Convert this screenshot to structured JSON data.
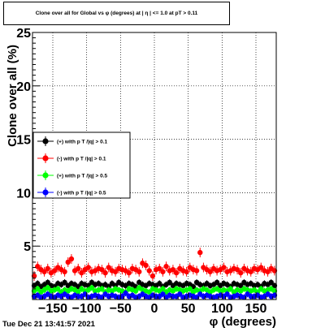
{
  "chart_data": {
    "type": "scatter",
    "title": "Clone  over all for Global vs φ (degrees) at | η | <= 1.0 at pT > 0.11",
    "xlabel": "φ (degrees)",
    "ylabel": "Clone  over all (%)",
    "xlim": [
      -180,
      180
    ],
    "ylim": [
      0,
      25
    ],
    "x_ticks": [
      -150,
      -100,
      -50,
      0,
      50,
      100,
      150
    ],
    "x_tick_labels": [
      "−150",
      "−100",
      "−50",
      "0",
      "50",
      "100",
      "150"
    ],
    "y_ticks": [
      0,
      5,
      10,
      15,
      20,
      25
    ],
    "y_tick_labels": [
      "",
      "5",
      "10",
      "15",
      "20",
      "25"
    ],
    "grid": true,
    "legend_position": "middle-left",
    "series": [
      {
        "name": "(+) with p T /|q| > 0.1",
        "color": "#000000",
        "level": 1.4,
        "values": [
          1.3,
          1.5,
          1.2,
          1.4,
          1.6,
          1.3,
          1.2,
          1.5,
          1.4,
          1.6,
          1.3,
          1.5,
          1.4,
          1.2,
          1.5,
          1.4,
          1.3,
          1.6,
          1.4,
          1.5,
          1.3,
          1.4,
          1.2,
          1.5,
          1.3,
          1.6,
          1.4,
          1.3,
          1.5,
          1.4,
          1.2,
          1.6,
          1.4,
          1.3,
          1.5,
          1.4,
          1.3,
          1.5,
          1.2,
          1.4,
          1.6,
          1.3,
          1.5,
          1.4,
          1.3,
          1.5,
          1.4,
          1.2,
          1.6,
          1.4,
          1.3,
          1.5,
          1.3,
          1.4,
          1.6,
          1.3,
          1.5,
          1.4,
          1.2,
          1.5,
          1.4,
          1.3,
          1.6,
          1.4,
          1.5,
          1.3,
          1.4,
          1.2,
          1.5,
          1.4,
          1.6,
          1.3
        ]
      },
      {
        "name": "(-) with p T /|q| > 0.1",
        "color": "#ff0000",
        "level": 2.8,
        "values": [
          2.2,
          3.1,
          2.8,
          2.6,
          2.9,
          2.5,
          2.7,
          3.0,
          2.8,
          2.6,
          3.5,
          3.8,
          2.7,
          2.9,
          2.5,
          2.8,
          3.0,
          2.6,
          2.7,
          2.9,
          2.8,
          2.5,
          3.0,
          2.7,
          2.6,
          2.9,
          2.8,
          2.7,
          2.5,
          2.9,
          2.8,
          2.6,
          3.4,
          3.2,
          2.7,
          2.2,
          2.8,
          2.9,
          2.6,
          3.1,
          2.7,
          2.8,
          2.5,
          2.9,
          2.7,
          2.6,
          3.0,
          2.8,
          2.7,
          4.4,
          3.0,
          2.8,
          2.6,
          2.9,
          2.7,
          2.8,
          3.0,
          2.6,
          2.7,
          2.9,
          2.8,
          2.5,
          2.9,
          2.7,
          2.6,
          2.9,
          2.8,
          3.0,
          2.7,
          2.6,
          2.9,
          2.7
        ]
      },
      {
        "name": "(+) with p T /|q| > 0.5",
        "color": "#00ff00",
        "level": 0.9,
        "values": [
          0.8,
          1.0,
          0.7,
          0.9,
          1.1,
          0.8,
          0.9,
          1.0,
          0.7,
          0.9,
          0.8,
          1.0,
          0.9,
          0.7,
          1.0,
          0.8,
          0.9,
          1.1,
          0.8,
          0.9,
          1.0,
          0.7,
          0.9,
          0.8,
          1.0,
          0.9,
          0.8,
          0.7,
          1.0,
          0.9,
          0.8,
          1.1,
          0.9,
          0.8,
          0.7,
          1.0,
          0.9,
          0.8,
          1.0,
          0.7,
          0.9,
          0.8,
          1.0,
          0.9,
          0.8,
          0.9,
          1.0,
          0.7,
          0.9,
          0.8,
          1.0,
          0.9,
          0.7,
          0.9,
          1.0,
          0.8,
          0.9,
          0.8,
          1.0,
          0.7,
          0.9,
          0.8,
          1.0,
          0.9,
          0.8,
          0.9,
          0.7,
          1.0,
          0.8,
          0.9,
          1.0,
          0.8
        ]
      },
      {
        "name": "(-) with p T /|q| > 0.5",
        "color": "#0000ff",
        "level": 0.3,
        "values": [
          0.3,
          0.4,
          0.2,
          0.3,
          0.5,
          0.3,
          0.2,
          0.4,
          0.3,
          0.5,
          0.3,
          0.2,
          0.4,
          0.3,
          0.3,
          0.5,
          0.2,
          0.3,
          0.4,
          0.3,
          0.2,
          0.5,
          0.3,
          0.4,
          0.3,
          0.2,
          0.3,
          0.6,
          0.3,
          0.4,
          0.2,
          0.3,
          0.5,
          0.3,
          0.2,
          0.4,
          0.3,
          0.3,
          0.5,
          0.2,
          0.4,
          0.3,
          0.3,
          0.5,
          0.2,
          0.3,
          0.4,
          0.3,
          0.2,
          0.5,
          0.3,
          0.4,
          0.3,
          0.2,
          0.3,
          0.4,
          0.3,
          0.5,
          0.2,
          0.3,
          0.4,
          0.3,
          0.2,
          0.5,
          0.3,
          0.3,
          0.4,
          0.2,
          0.3,
          0.5,
          0.3,
          0.4
        ]
      }
    ]
  },
  "footer": {
    "timestamp": "Tue Dec 21 13:41:57 2021"
  }
}
